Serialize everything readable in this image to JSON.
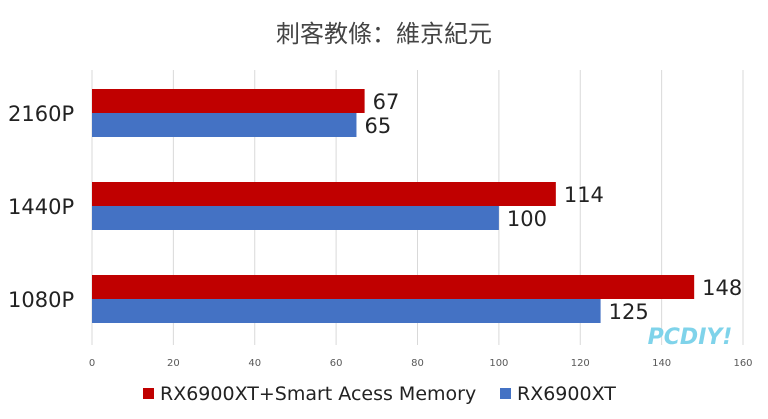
{
  "chart_data": {
    "type": "bar",
    "orientation": "horizontal",
    "title": "刺客教條：維京紀元",
    "categories": [
      "2160P",
      "1440P",
      "1080P"
    ],
    "series": [
      {
        "name": "RX6900XT+Smart Acess Memory",
        "color": "#c00000",
        "values": [
          67,
          114,
          148
        ]
      },
      {
        "name": "RX6900XT",
        "color": "#4472c4",
        "values": [
          65,
          100,
          125
        ]
      }
    ],
    "xlim": [
      0,
      160
    ],
    "xticks": [
      0,
      20,
      40,
      60,
      80,
      100,
      120,
      140,
      160
    ],
    "grid": true,
    "legend_position": "bottom"
  },
  "watermark": "PCDIY!"
}
